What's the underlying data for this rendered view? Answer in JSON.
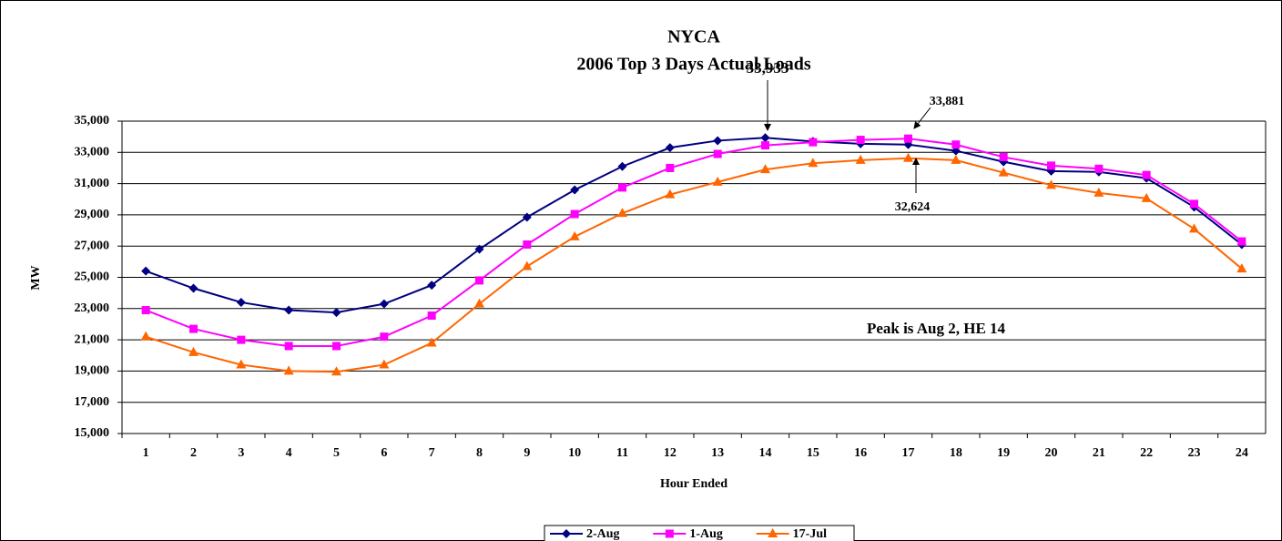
{
  "chart_data": {
    "type": "line",
    "title": "NYCA",
    "subtitle": "2006 Top 3 Days Actual Loads",
    "x_label": "Hour Ended",
    "y_label": "MW",
    "categories": [
      "1",
      "2",
      "3",
      "4",
      "5",
      "6",
      "7",
      "8",
      "9",
      "10",
      "11",
      "12",
      "13",
      "14",
      "15",
      "16",
      "17",
      "18",
      "19",
      "20",
      "21",
      "22",
      "23",
      "24"
    ],
    "series": [
      {
        "name": "2-Aug",
        "color": "#000080",
        "marker": "diamond",
        "values": [
          25400,
          24300,
          23400,
          22900,
          22750,
          23300,
          24500,
          26800,
          28850,
          30600,
          32100,
          33300,
          33750,
          33933,
          33700,
          33550,
          33500,
          33100,
          32400,
          31800,
          31750,
          31350,
          29500,
          27100
        ]
      },
      {
        "name": "1-Aug",
        "color": "#ff00ff",
        "marker": "square",
        "values": [
          22900,
          21700,
          21000,
          20600,
          20600,
          21200,
          22550,
          24800,
          27100,
          29050,
          30750,
          32000,
          32900,
          33450,
          33650,
          33800,
          33881,
          33500,
          32700,
          32150,
          31950,
          31550,
          29700,
          27300
        ]
      },
      {
        "name": "17-Jul",
        "color": "#ff6600",
        "marker": "triangle",
        "values": [
          21200,
          20200,
          19400,
          19000,
          18950,
          19400,
          20800,
          23300,
          25700,
          27600,
          29100,
          30300,
          31100,
          31900,
          32300,
          32500,
          32624,
          32500,
          31700,
          30900,
          30400,
          30050,
          28100,
          25550
        ]
      }
    ],
    "ylim": [
      15000,
      35000
    ],
    "yticks": [
      {
        "value": 15000,
        "label": "15,000"
      },
      {
        "value": 17000,
        "label": "17,000"
      },
      {
        "value": 19000,
        "label": "19,000"
      },
      {
        "value": 21000,
        "label": "21,000"
      },
      {
        "value": 23000,
        "label": "23,000"
      },
      {
        "value": 25000,
        "label": "25,000"
      },
      {
        "value": 27000,
        "label": "27,000"
      },
      {
        "value": 29000,
        "label": "29,000"
      },
      {
        "value": 31000,
        "label": "31,000"
      },
      {
        "value": 33000,
        "label": "33,000"
      },
      {
        "value": 35000,
        "label": "35,000"
      }
    ],
    "grid": true,
    "legend": "bottom",
    "annotations": [
      "33,933",
      "33,881",
      "32,624",
      "Peak is Aug 2, HE 14"
    ]
  }
}
